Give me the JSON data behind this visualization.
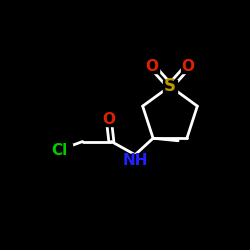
{
  "bg_color": "#000000",
  "atom_colors": {
    "C": "#ffffff",
    "Cl": "#00cc00",
    "O": "#dd2200",
    "S": "#bb9900",
    "N": "#2222ff",
    "H": "#ffffff"
  },
  "bond_color": "#ffffff",
  "bond_lw": 2.0,
  "figsize": [
    2.5,
    2.5
  ],
  "dpi": 100,
  "xlim": [
    0,
    10
  ],
  "ylim": [
    0,
    10
  ]
}
